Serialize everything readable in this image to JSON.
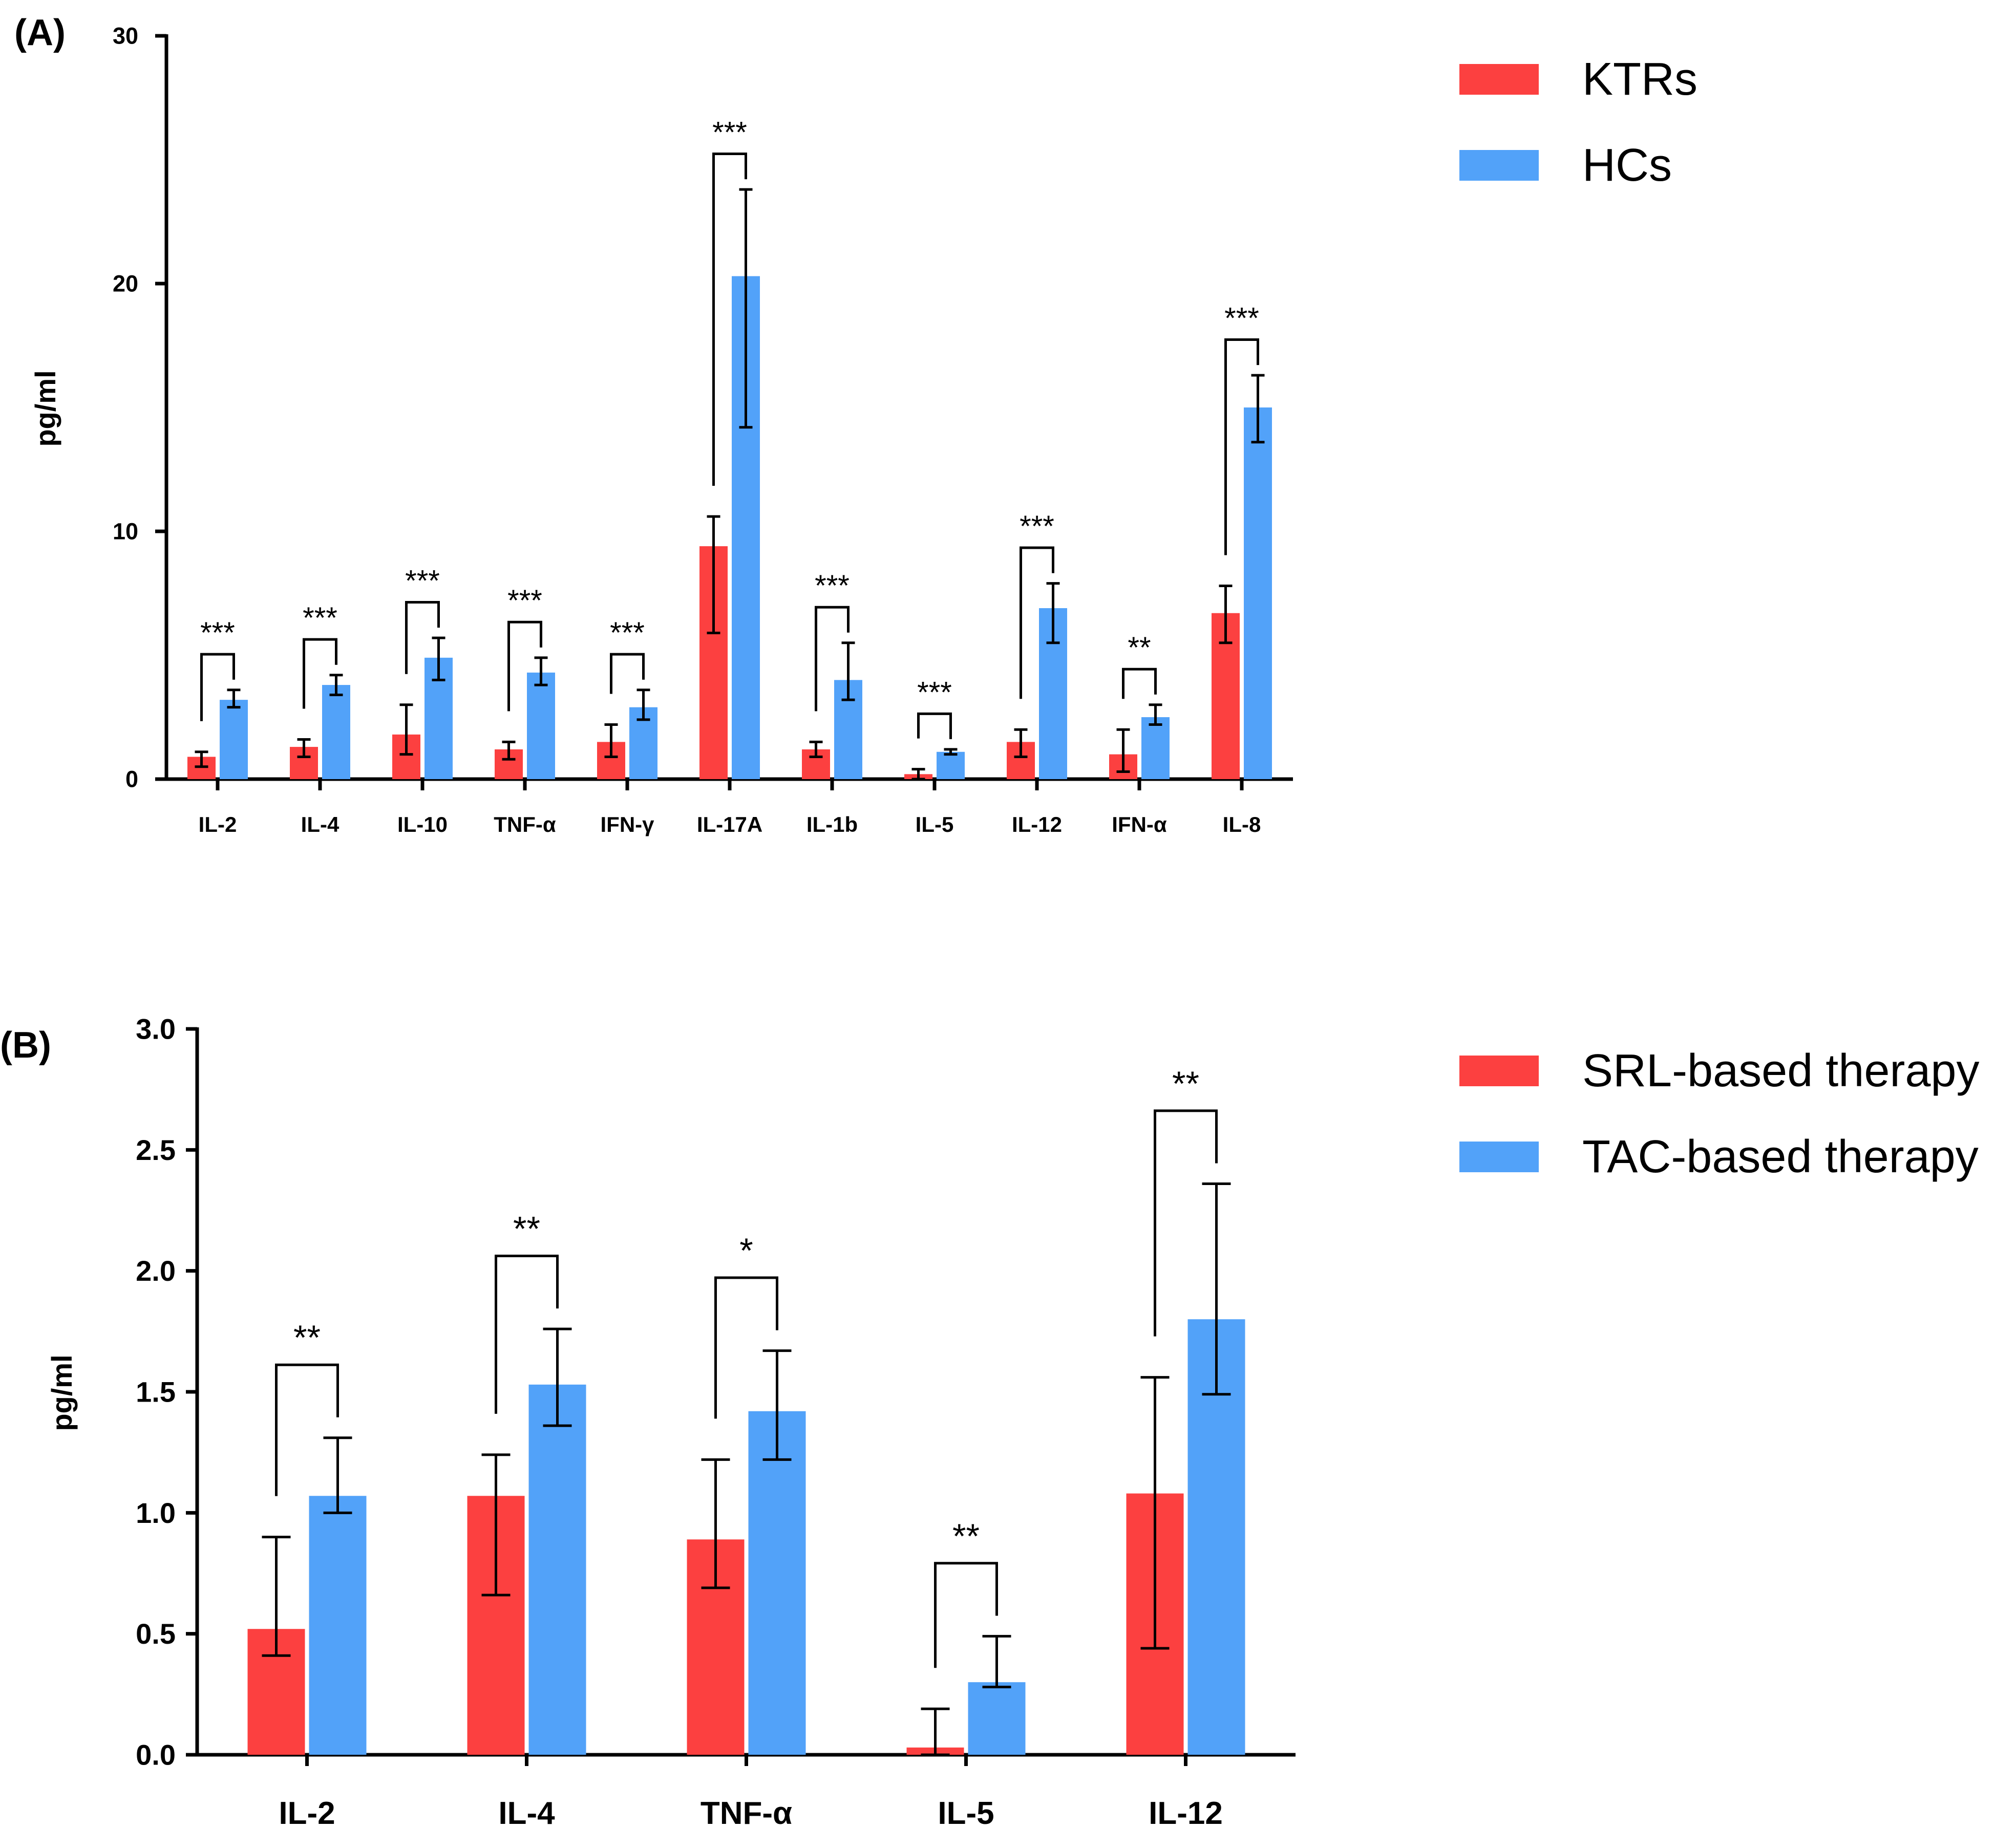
{
  "colors": {
    "series_1": "#fc4040",
    "series_2": "#52a2f9",
    "axis": "#000000"
  },
  "chart_data": [
    {
      "type": "bar",
      "panel_label": "(A)",
      "title": "",
      "xlabel": "",
      "ylabel": "pg/ml",
      "ylim": [
        0,
        30
      ],
      "yticks": [
        0,
        10,
        20,
        30
      ],
      "ytick_labels": [
        "0",
        "10",
        "20",
        "30"
      ],
      "categories": [
        "IL-2",
        "IL-4",
        "IL-10",
        "TNF-α",
        "IFN-γ",
        "IL-17A",
        "IL-1b",
        "IL-5",
        "IL-12",
        "IFN-α",
        "IL-8"
      ],
      "series": [
        {
          "name": "KTRs",
          "values": [
            0.9,
            1.3,
            1.8,
            1.2,
            1.5,
            9.4,
            1.2,
            0.2,
            1.5,
            1.0,
            6.7
          ],
          "error_low": [
            0.5,
            0.9,
            1.0,
            0.8,
            0.9,
            5.9,
            0.9,
            0.0,
            0.9,
            0.3,
            5.5
          ],
          "error_high": [
            1.1,
            1.6,
            3.0,
            1.5,
            2.2,
            10.6,
            1.5,
            0.4,
            2.0,
            2.0,
            7.8
          ]
        },
        {
          "name": "HCs",
          "values": [
            3.2,
            3.8,
            4.9,
            4.3,
            2.9,
            20.3,
            4.0,
            1.1,
            6.9,
            2.5,
            15.0
          ],
          "error_low": [
            2.9,
            3.4,
            4.0,
            3.8,
            2.4,
            14.2,
            3.2,
            1.0,
            5.5,
            2.2,
            13.6
          ],
          "error_high": [
            3.6,
            4.2,
            5.7,
            4.9,
            3.6,
            23.8,
            5.5,
            1.2,
            7.9,
            3.0,
            16.3
          ]
        }
      ],
      "significance": [
        "***",
        "***",
        "***",
        "***",
        "***",
        "***",
        "***",
        "***",
        "***",
        "**",
        "***"
      ],
      "legend": {
        "position": "right",
        "entries": [
          "KTRs",
          "HCs"
        ]
      }
    },
    {
      "type": "bar",
      "panel_label": "(B)",
      "title": "",
      "xlabel": "",
      "ylabel": "pg/ml",
      "ylim": [
        0,
        3.0
      ],
      "yticks": [
        0,
        0.5,
        1.0,
        1.5,
        2.0,
        2.5,
        3.0
      ],
      "ytick_labels": [
        "0.0",
        "0.5",
        "1.0",
        "1.5",
        "2.0",
        "2.5",
        "3.0"
      ],
      "categories": [
        "IL-2",
        "IL-4",
        "TNF-α",
        "IL-5",
        "IL-12"
      ],
      "series": [
        {
          "name": "SRL-based therapy",
          "values": [
            0.52,
            1.07,
            0.89,
            0.03,
            1.08
          ],
          "error_low": [
            0.41,
            0.66,
            0.69,
            0.0,
            0.44
          ],
          "error_high": [
            0.9,
            1.24,
            1.22,
            0.19,
            1.56
          ]
        },
        {
          "name": "TAC-based therapy",
          "values": [
            1.07,
            1.53,
            1.42,
            0.3,
            1.8
          ],
          "error_low": [
            1.0,
            1.36,
            1.22,
            0.28,
            1.49
          ],
          "error_high": [
            1.31,
            1.76,
            1.67,
            0.49,
            2.36
          ]
        }
      ],
      "significance": [
        "**",
        "**",
        "*",
        "**",
        "**"
      ],
      "legend": {
        "position": "right",
        "entries": [
          "SRL-based therapy",
          "TAC-based therapy"
        ]
      }
    }
  ]
}
